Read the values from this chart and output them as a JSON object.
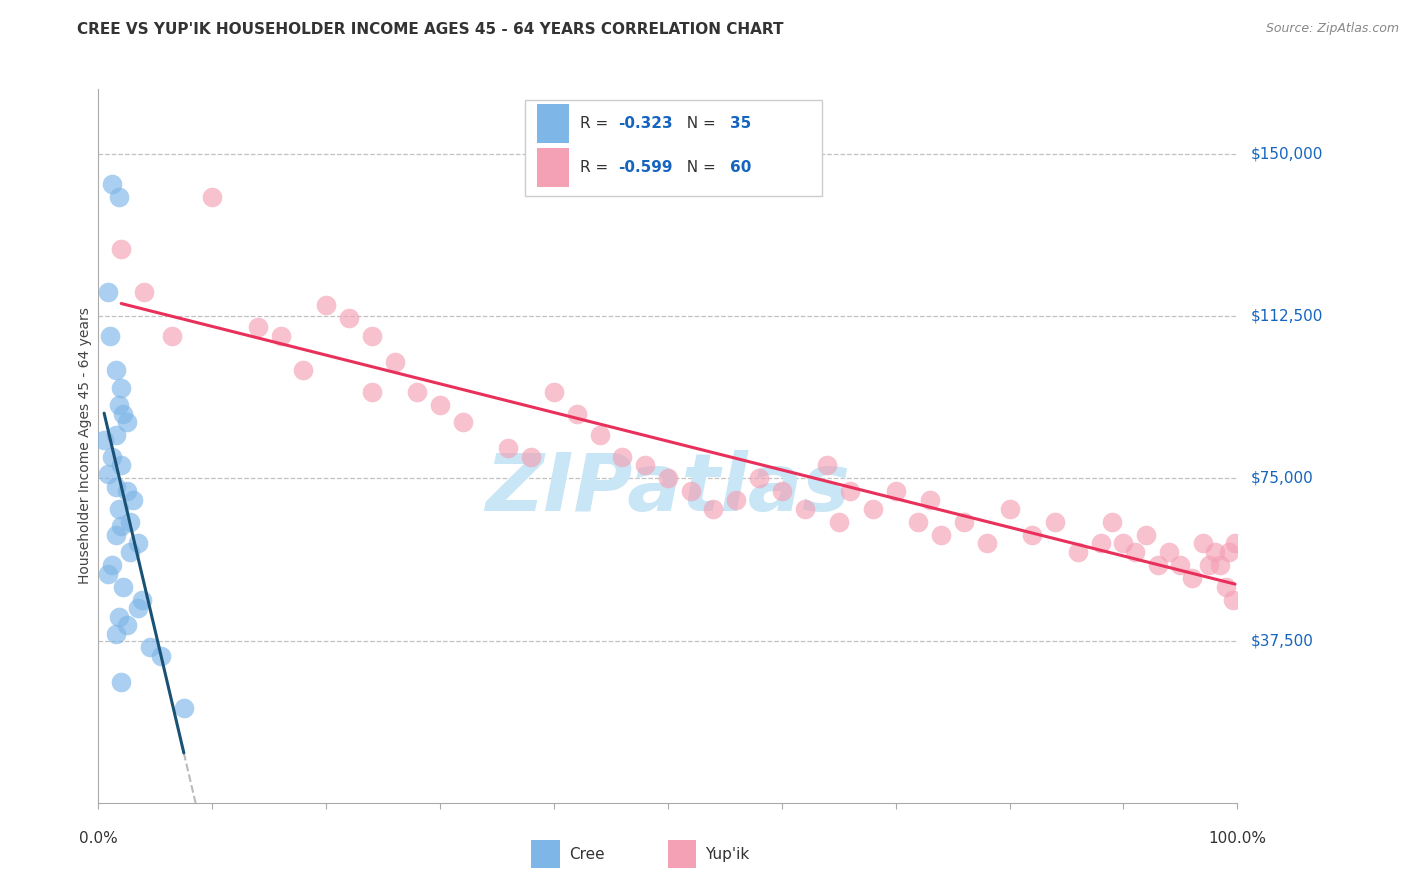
{
  "title": "CREE VS YUP'IK HOUSEHOLDER INCOME AGES 45 - 64 YEARS CORRELATION CHART",
  "source": "Source: ZipAtlas.com",
  "ylabel": "Householder Income Ages 45 - 64 years",
  "ytick_labels": [
    "$37,500",
    "$75,000",
    "$112,500",
    "$150,000"
  ],
  "ytick_values": [
    37500,
    75000,
    112500,
    150000
  ],
  "ymin": 0,
  "ymax": 165000,
  "xmin": 0.0,
  "xmax": 100.0,
  "legend_cree": "Cree",
  "legend_yupik": "Yup'ik",
  "R_cree": "-0.323",
  "N_cree": "35",
  "R_yupik": "-0.599",
  "N_yupik": "60",
  "cree_color": "#7EB6E8",
  "yupik_color": "#F4A0B5",
  "cree_line_color": "#1A5276",
  "yupik_line_color": "#E8305A",
  "dash_line_color": "#BBBBBB",
  "grid_color": "#BBBBBB",
  "background_color": "#FFFFFF",
  "watermark_text": "ZIPatlas",
  "watermark_color": "#C8E6F5",
  "title_color": "#333333",
  "source_color": "#888888",
  "right_tick_color": "#1565C0",
  "cree_x": [
    1.2,
    1.8,
    0.8,
    1.0,
    1.5,
    2.0,
    1.8,
    2.2,
    2.5,
    1.5,
    0.5,
    1.2,
    2.0,
    0.8,
    1.5,
    2.5,
    3.0,
    1.8,
    2.8,
    2.0,
    1.5,
    3.5,
    2.8,
    1.2,
    0.8,
    2.2,
    3.8,
    3.5,
    1.8,
    2.5,
    1.5,
    4.5,
    5.5,
    2.0,
    7.5
  ],
  "cree_y": [
    143000,
    140000,
    118000,
    108000,
    100000,
    96000,
    92000,
    90000,
    88000,
    85000,
    84000,
    80000,
    78000,
    76000,
    73000,
    72000,
    70000,
    68000,
    65000,
    64000,
    62000,
    60000,
    58000,
    55000,
    53000,
    50000,
    47000,
    45000,
    43000,
    41000,
    39000,
    36000,
    34000,
    28000,
    22000
  ],
  "yupik_x": [
    2.0,
    4.0,
    6.5,
    10.0,
    14.0,
    18.0,
    20.0,
    22.0,
    24.0,
    26.0,
    28.0,
    30.0,
    32.0,
    16.0,
    36.0,
    38.0,
    40.0,
    42.0,
    44.0,
    46.0,
    48.0,
    50.0,
    52.0,
    54.0,
    24.0,
    56.0,
    58.0,
    60.0,
    62.0,
    64.0,
    65.0,
    66.0,
    68.0,
    70.0,
    72.0,
    73.0,
    74.0,
    76.0,
    78.0,
    80.0,
    82.0,
    84.0,
    86.0,
    88.0,
    89.0,
    90.0,
    91.0,
    92.0,
    93.0,
    94.0,
    95.0,
    96.0,
    97.0,
    97.5,
    98.0,
    98.5,
    99.0,
    99.3,
    99.6,
    99.8
  ],
  "yupik_y": [
    128000,
    118000,
    108000,
    140000,
    110000,
    100000,
    115000,
    112000,
    108000,
    102000,
    95000,
    92000,
    88000,
    108000,
    82000,
    80000,
    95000,
    90000,
    85000,
    80000,
    78000,
    75000,
    72000,
    68000,
    95000,
    70000,
    75000,
    72000,
    68000,
    78000,
    65000,
    72000,
    68000,
    72000,
    65000,
    70000,
    62000,
    65000,
    60000,
    68000,
    62000,
    65000,
    58000,
    60000,
    65000,
    60000,
    58000,
    62000,
    55000,
    58000,
    55000,
    52000,
    60000,
    55000,
    58000,
    55000,
    50000,
    58000,
    47000,
    60000
  ]
}
